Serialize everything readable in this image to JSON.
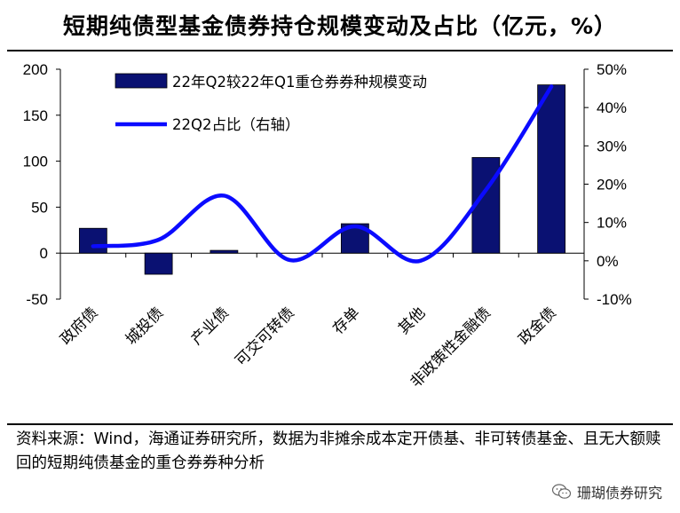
{
  "header": {
    "title": "短期纯债型基金债券持仓规模变动及占比（亿元，%）"
  },
  "chart_data": {
    "type": "bar+line",
    "categories": [
      "政府债",
      "城投债",
      "产业债",
      "可交可转债",
      "存单",
      "其他",
      "非政策性金融债",
      "政金债"
    ],
    "series": [
      {
        "name": "22年Q2较22年Q1重仓券券种规模变动",
        "type": "bar",
        "axis": "left",
        "values": [
          27,
          -23,
          3,
          0,
          32,
          0,
          104,
          183
        ]
      },
      {
        "name": "22Q2占比（右轴）",
        "type": "line",
        "axis": "right",
        "values": [
          3.8,
          5.5,
          17.0,
          0.2,
          9.0,
          0.0,
          18.5,
          45.5
        ]
      }
    ],
    "left_axis": {
      "ylim": [
        -50,
        200
      ],
      "ticks": [
        "200",
        "150",
        "100",
        "50",
        "0",
        "-50"
      ]
    },
    "right_axis": {
      "ylim": [
        -10,
        50
      ],
      "ticks": [
        "50%",
        "40%",
        "30%",
        "20%",
        "10%",
        "0%",
        "-10%"
      ]
    },
    "legend_position": "top-left",
    "grid": false,
    "colors": {
      "bar": "#0a1172",
      "line": "#0b0bff"
    }
  },
  "footer": {
    "source": "资料来源：Wind，海通证券研究所，数据为非摊余成本定开债基、非可转债基金、且无大额赎回的短期纯债基金的重仓券券种分析",
    "watermark": "珊瑚债券研究"
  }
}
